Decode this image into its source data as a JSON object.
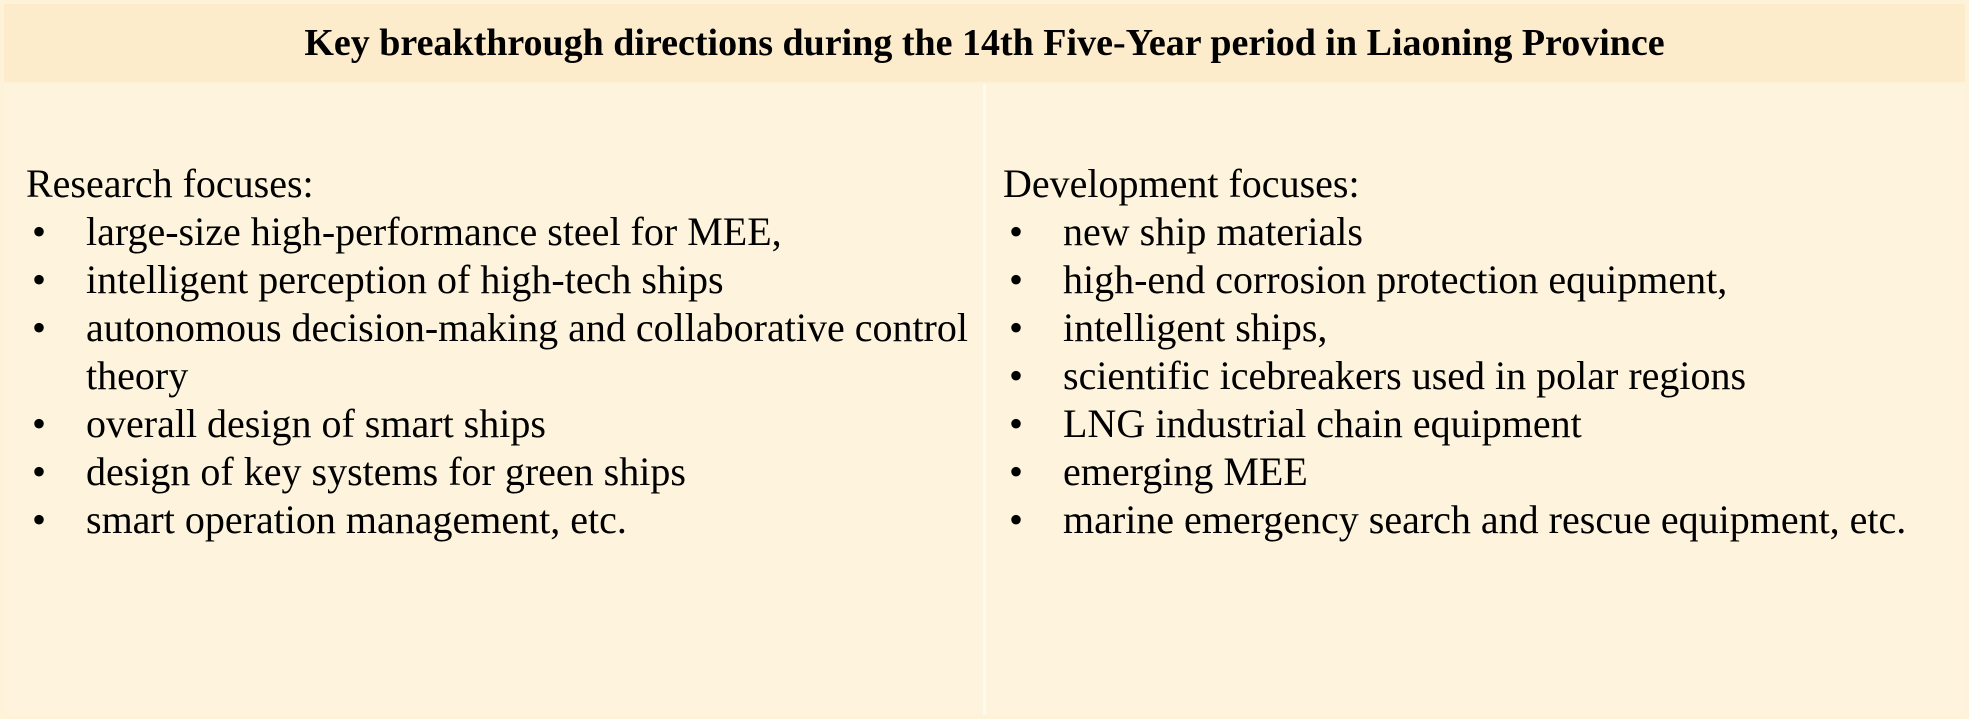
{
  "header": {
    "title": "Key breakthrough directions during the 14th Five-Year period in Liaoning Province"
  },
  "research": {
    "heading": "Research focuses:",
    "bullet_symbol": "•",
    "items": [
      "large-size high-performance steel for MEE,",
      "intelligent perception of high-tech ships",
      "autonomous decision-making and collaborative control theory",
      "overall design of smart ships",
      "design of key systems for green ships",
      "smart operation management, etc."
    ]
  },
  "development": {
    "heading": "Development focuses:",
    "bullet_symbol": "•",
    "items": [
      "new ship materials",
      "high-end corrosion protection equipment,",
      "intelligent ships,",
      "scientific icebreakers used in polar regions",
      "LNG industrial chain equipment",
      "emerging MEE",
      "marine emergency search and rescue equipment, etc."
    ]
  },
  "colors": {
    "background": "#fef3d8",
    "header_background": "#fceccb",
    "text": "#000000"
  }
}
